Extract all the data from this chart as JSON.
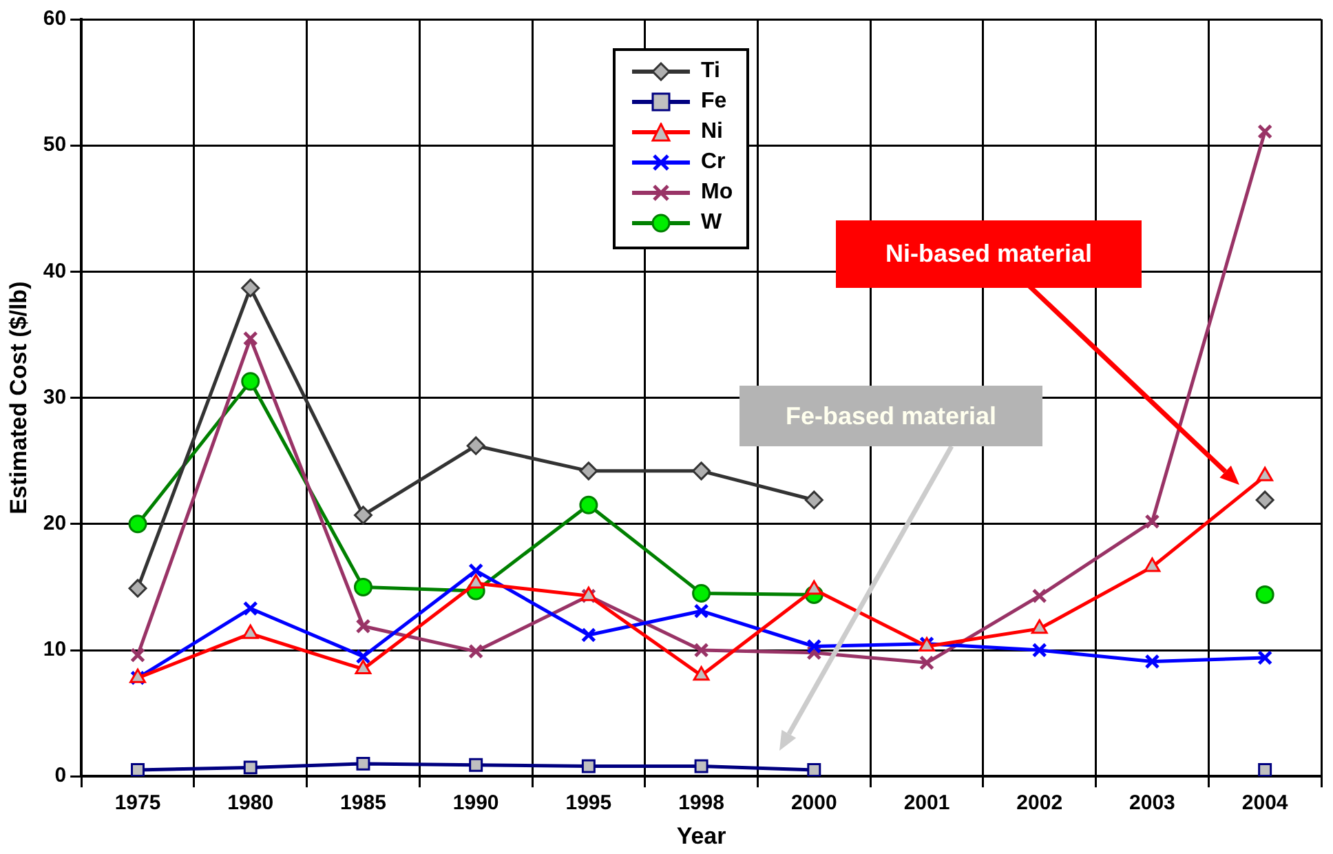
{
  "chart_data": {
    "type": "line",
    "xlabel": "Year",
    "ylabel": "Estimated Cost ($/lb)",
    "categories": [
      "1975",
      "1980",
      "1985",
      "1990",
      "1995",
      "1998",
      "2000",
      "2001",
      "2002",
      "2003",
      "2004"
    ],
    "ylim": [
      0,
      60
    ],
    "yticks": [
      0,
      10,
      20,
      30,
      40,
      50,
      60
    ],
    "grid": true,
    "legend": "top",
    "series": [
      {
        "name": "Ti",
        "color": "#333333",
        "marker": "diamond",
        "values": [
          14.9,
          38.7,
          20.7,
          26.2,
          24.2,
          24.2,
          21.9,
          null,
          null,
          null,
          21.9
        ]
      },
      {
        "name": "Fe",
        "color": "#000080",
        "marker": "square",
        "values": [
          0.5,
          0.7,
          1.0,
          0.9,
          0.8,
          0.8,
          0.5,
          null,
          null,
          null,
          0.5
        ]
      },
      {
        "name": "Ni",
        "color": "#ff0000",
        "marker": "triangle",
        "values": [
          7.8,
          11.3,
          8.5,
          15.3,
          14.3,
          8.0,
          14.8,
          10.3,
          11.7,
          16.6,
          23.8
        ]
      },
      {
        "name": "Cr",
        "color": "#0000ff",
        "marker": "cross",
        "values": [
          7.8,
          13.3,
          9.5,
          16.3,
          11.2,
          13.1,
          10.3,
          10.5,
          10.0,
          9.1,
          9.4
        ]
      },
      {
        "name": "Mo",
        "color": "#993366",
        "marker": "cross",
        "values": [
          9.6,
          34.7,
          11.9,
          9.9,
          14.3,
          10.0,
          9.8,
          9.0,
          14.3,
          20.2,
          51.1
        ]
      },
      {
        "name": "W",
        "color": "#008000",
        "marker": "circle",
        "values": [
          20.0,
          31.3,
          15.0,
          14.7,
          21.5,
          14.5,
          14.4,
          null,
          null,
          null,
          14.4
        ]
      }
    ],
    "annotations": [
      "Ni-based material",
      "Fe-based material"
    ]
  }
}
